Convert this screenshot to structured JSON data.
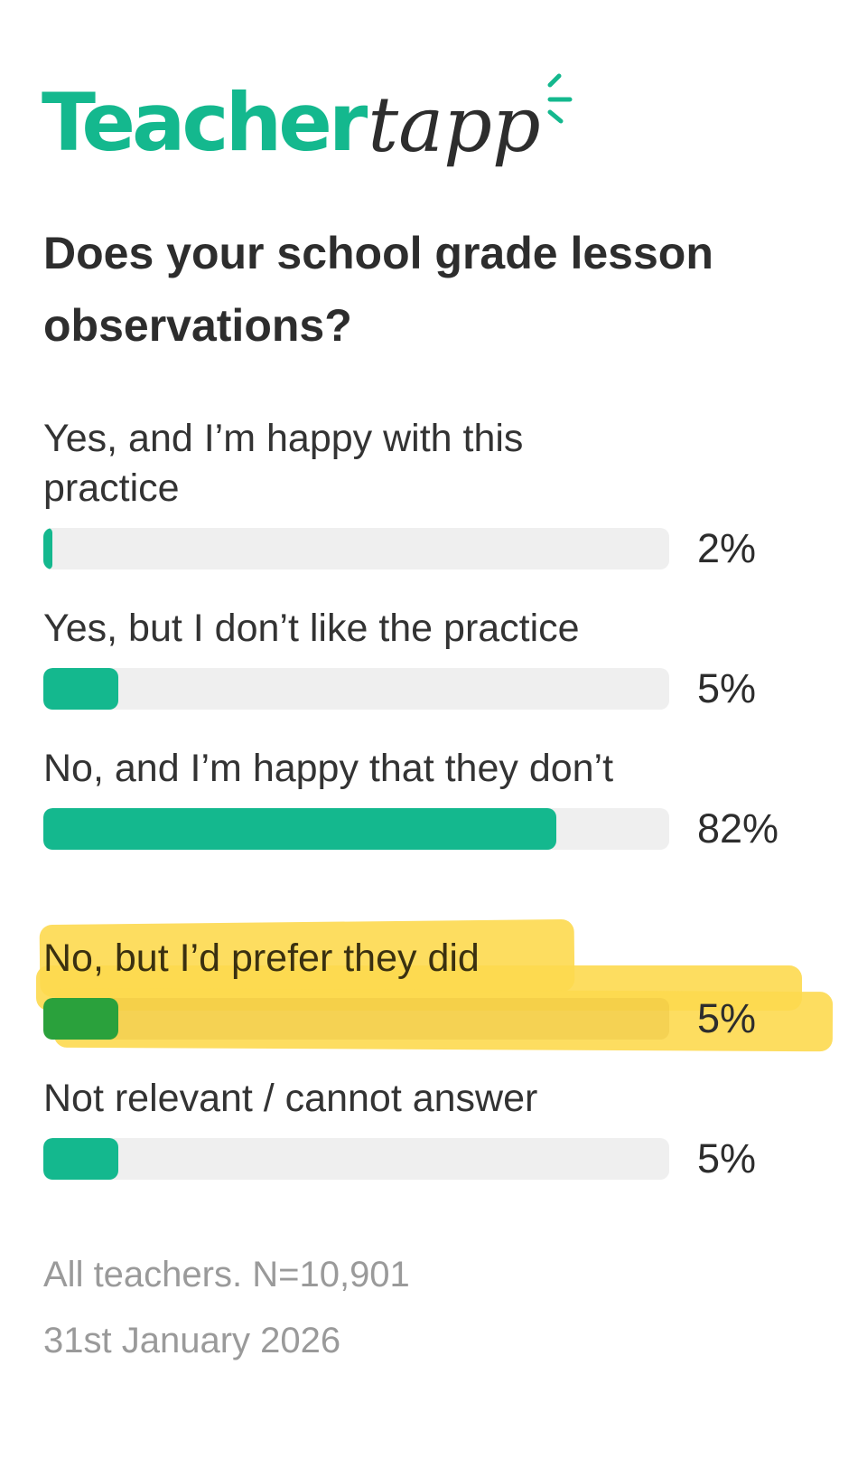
{
  "brand": {
    "logo_part1": "Teacher",
    "logo_part2": "tapp",
    "accent": "#14b88e"
  },
  "chart_data": {
    "type": "bar",
    "orientation": "horizontal",
    "title": "Does your school grade lesson observations?",
    "categories": [
      "Yes, and I’m happy with this practice",
      "Yes, but I don’t like the practice",
      "No, and I’m happy that they don’t",
      "No, but I’d prefer they did",
      "Not relevant / cannot answer"
    ],
    "values": [
      2,
      5,
      82,
      5,
      5
    ],
    "labels": [
      "2%",
      "5%",
      "82%",
      "5%",
      "5%"
    ],
    "xlim": [
      0,
      100
    ],
    "highlighted_index": 3,
    "highlight_color": "#fdd94f",
    "bar_color": "#14b88e"
  },
  "footer": {
    "sample": "All teachers. N=10,901",
    "date": "31st January 2026"
  }
}
